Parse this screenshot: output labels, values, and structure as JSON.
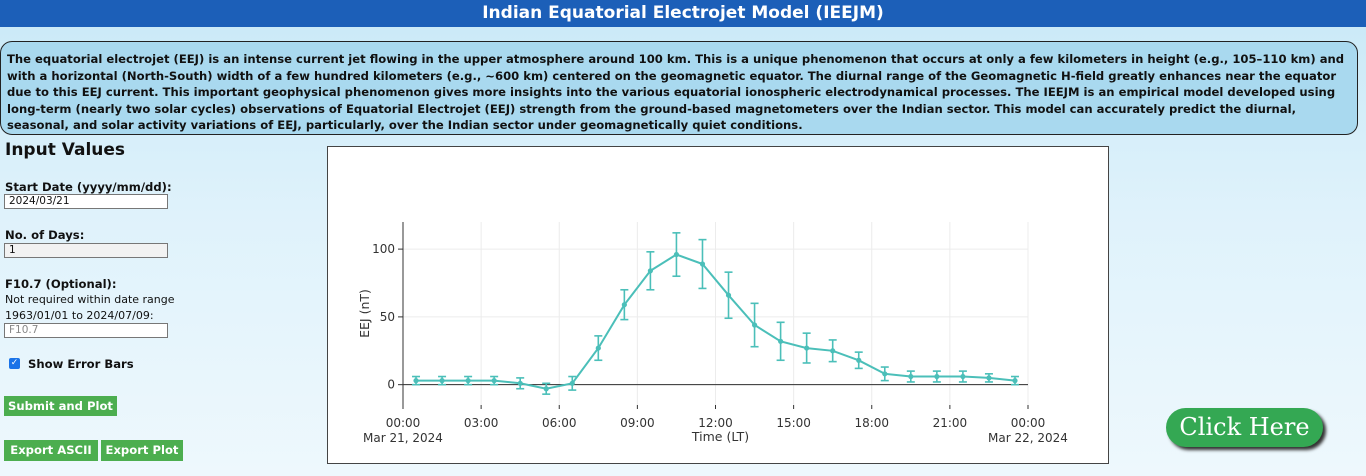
{
  "header": {
    "title": "Indian Equatorial Electrojet Model (IEEJM)"
  },
  "description": "The equatorial electrojet (EEJ) is an intense current jet flowing in the upper atmosphere around 100 km. This is a unique phenomenon that occurs at only a few kilometers in height (e.g., 105–110 km) and with a horizontal (North-South) width of a few hundred kilometers (e.g., ~600 km) centered on the geomagnetic equator. The diurnal range of the Geomagnetic H-field greatly enhances near the equator due to this EEJ current. This important geophysical phenomenon gives more insights into the various equatorial ionospheric electrodynamical processes. The IEEJM is an empirical model developed using long-term (nearly two solar cycles) observations of Equatorial Electrojet (EEJ) strength from the ground-based magnetometers over the Indian sector. This model can accurately predict the diurnal, seasonal, and solar activity variations of EEJ, particularly, over the Indian sector under geomagnetically quiet conditions.",
  "form": {
    "heading": "Input Values",
    "start_date_label": "Start Date (yyyy/mm/dd):",
    "start_date_value": "2024/03/21",
    "days_label": "No. of Days:",
    "days_value": "1",
    "f107_label": "F10.7 (Optional):",
    "f107_note_1": "Not required within date range",
    "f107_note_2": "1963/01/01 to 2024/07/09:",
    "f107_placeholder": "F10.7",
    "error_bars_label": "Show Error Bars",
    "error_bars_checked": true,
    "submit_label": "Submit and Plot",
    "export_ascii_label": "Export ASCII",
    "export_plot_label": "Export Plot"
  },
  "click_here_label": "Click Here",
  "colors": {
    "title_bar": "#1c5fb8",
    "series": "#4bbfb9",
    "button": "#4cae4f"
  },
  "chart_data": {
    "type": "line",
    "xlabel": "Time (LT)",
    "ylabel": "EEJ (nT)",
    "x_ticks": [
      "00:00",
      "03:00",
      "06:00",
      "09:00",
      "12:00",
      "15:00",
      "18:00",
      "21:00",
      "00:00"
    ],
    "x_tick_dates": [
      "Mar 21, 2024",
      "",
      "",
      "",
      "",
      "",
      "",
      "",
      "Mar 22, 2024"
    ],
    "ylim": [
      -15,
      120
    ],
    "y_ticks": [
      0,
      50,
      100
    ],
    "grid": true,
    "series": [
      {
        "hours": [
          0,
          1,
          2,
          3,
          4,
          5,
          6,
          7,
          8,
          9,
          10,
          11,
          12,
          13,
          14,
          15,
          16,
          17,
          18,
          19,
          20,
          21,
          22,
          23
        ],
        "values": [
          3,
          3,
          3,
          3,
          1,
          -3,
          1,
          27,
          59,
          84,
          96,
          89,
          66,
          44,
          32,
          27,
          25,
          18,
          8,
          6,
          6,
          6,
          5,
          3
        ],
        "errors": [
          3,
          3,
          3,
          3,
          4,
          4,
          5,
          9,
          11,
          14,
          16,
          18,
          17,
          16,
          14,
          11,
          8,
          6,
          5,
          4,
          4,
          4,
          3,
          3
        ]
      }
    ]
  }
}
